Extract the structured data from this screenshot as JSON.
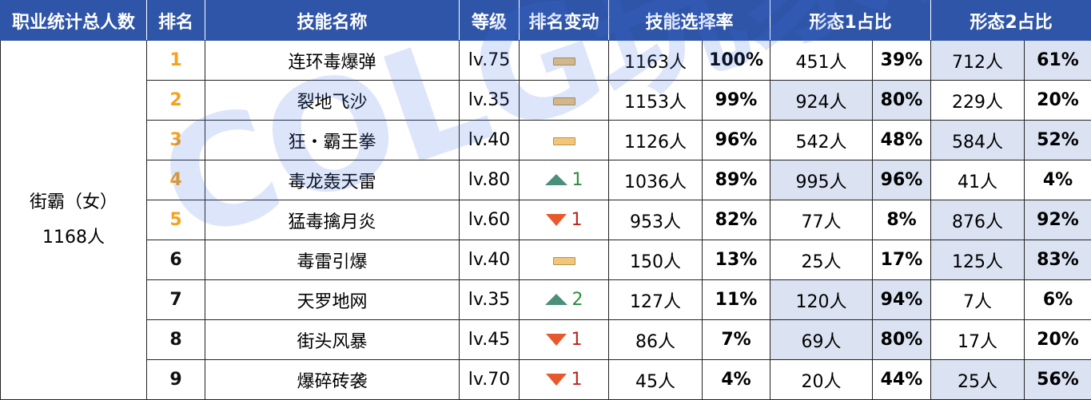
{
  "headers": [
    "职业统计总人数",
    "排名",
    "技能名称",
    "等级",
    "排名变动",
    "技能选择率",
    "形态1占比",
    "形态2占比"
  ],
  "class_name": "街霸（女）",
  "class_total": "1168人",
  "rows": [
    {
      "rank": "1",
      "skill": "连环毒爆弹",
      "level": "lv.75",
      "change_dir": "none",
      "change_num": "",
      "sel_count": "1163人",
      "sel_rate": "100%",
      "f1_count": "451人",
      "f1_pct": "39%",
      "f2_count": "712人",
      "f2_pct": "61%",
      "hl": "f2"
    },
    {
      "rank": "2",
      "skill": "裂地飞沙",
      "level": "lv.35",
      "change_dir": "none",
      "change_num": "",
      "sel_count": "1153人",
      "sel_rate": "99%",
      "f1_count": "924人",
      "f1_pct": "80%",
      "f2_count": "229人",
      "f2_pct": "20%",
      "hl": "f1"
    },
    {
      "rank": "3",
      "skill": "狂・霸王拳",
      "level": "lv.40",
      "change_dir": "none",
      "change_num": "",
      "sel_count": "1126人",
      "sel_rate": "96%",
      "f1_count": "542人",
      "f1_pct": "48%",
      "f2_count": "584人",
      "f2_pct": "52%",
      "hl": "f2"
    },
    {
      "rank": "4",
      "skill": "毒龙轰天雷",
      "level": "lv.80",
      "change_dir": "up",
      "change_num": "1",
      "sel_count": "1036人",
      "sel_rate": "89%",
      "f1_count": "995人",
      "f1_pct": "96%",
      "f2_count": "41人",
      "f2_pct": "4%",
      "hl": "f1"
    },
    {
      "rank": "5",
      "skill": "猛毒擒月炎",
      "level": "lv.60",
      "change_dir": "down",
      "change_num": "1",
      "sel_count": "953人",
      "sel_rate": "82%",
      "f1_count": "77人",
      "f1_pct": "8%",
      "f2_count": "876人",
      "f2_pct": "92%",
      "hl": "f2"
    },
    {
      "rank": "6",
      "skill": "毒雷引爆",
      "level": "lv.40",
      "change_dir": "none",
      "change_num": "",
      "sel_count": "150人",
      "sel_rate": "13%",
      "f1_count": "25人",
      "f1_pct": "17%",
      "f2_count": "125人",
      "f2_pct": "83%",
      "hl": "f2"
    },
    {
      "rank": "7",
      "skill": "天罗地网",
      "level": "lv.35",
      "change_dir": "up",
      "change_num": "2",
      "sel_count": "127人",
      "sel_rate": "11%",
      "f1_count": "120人",
      "f1_pct": "94%",
      "f2_count": "7人",
      "f2_pct": "6%",
      "hl": "f1"
    },
    {
      "rank": "8",
      "skill": "街头风暴",
      "level": "lv.45",
      "change_dir": "down",
      "change_num": "1",
      "sel_count": "86人",
      "sel_rate": "7%",
      "f1_count": "69人",
      "f1_pct": "80%",
      "f2_count": "17人",
      "f2_pct": "20%",
      "hl": "f1"
    },
    {
      "rank": "9",
      "skill": "爆碎砖袭",
      "level": "lv.70",
      "change_dir": "down",
      "change_num": "1",
      "sel_count": "45人",
      "sel_rate": "4%",
      "f1_count": "20人",
      "f1_pct": "44%",
      "f2_count": "25人",
      "f2_pct": "56%",
      "hl": "f2"
    }
  ],
  "watermark": "COLG玩家社区",
  "colors": {
    "header_bg": "#2e55a8",
    "rank_top5": "#f5a21e",
    "highlight": "#dbe3f3",
    "up": "#2e8b3e",
    "down": "#c0241c"
  }
}
